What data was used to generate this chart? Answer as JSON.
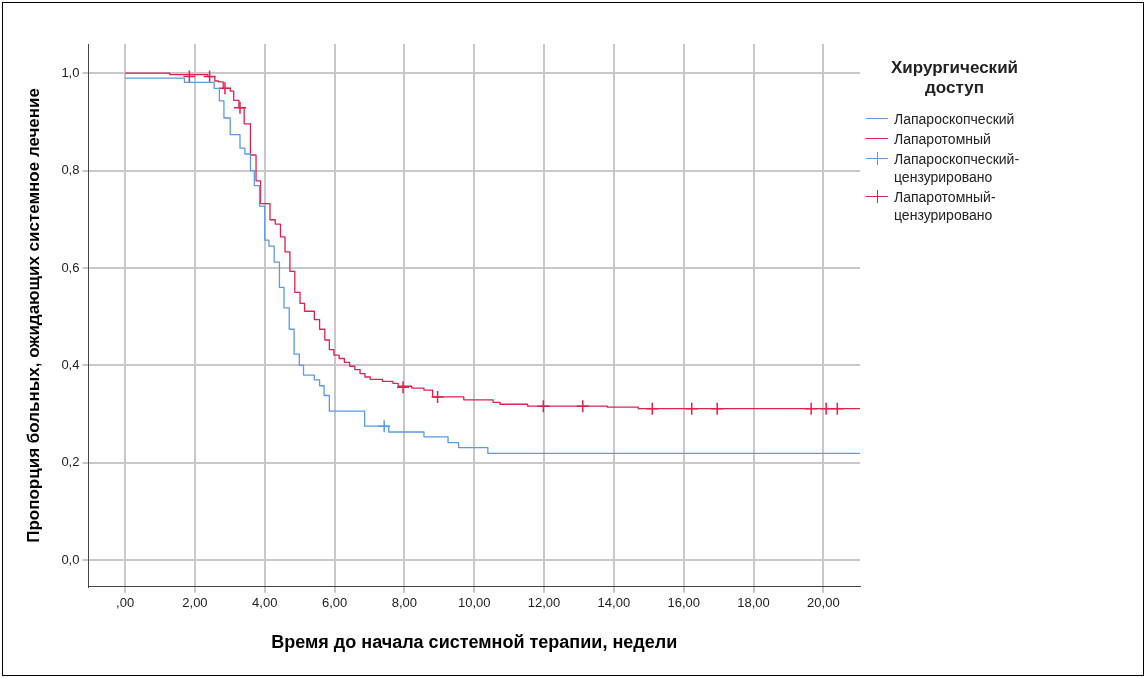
{
  "chart_data": {
    "type": "step",
    "xlabel": "Время до начала системной терапии, недели",
    "ylabel": "Пропорция больных, ожидающих системное лечение",
    "legend_title": "Хирургический доступ",
    "legend": "top right",
    "grid": true,
    "xlim": [
      -1.05,
      21.05
    ],
    "ylim": [
      -0.055,
      1.06
    ],
    "xticks": [
      {
        "value": 0,
        "label": ",00"
      },
      {
        "value": 2,
        "label": "2,00"
      },
      {
        "value": 4,
        "label": "4,00"
      },
      {
        "value": 6,
        "label": "6,00"
      },
      {
        "value": 8,
        "label": "8,00"
      },
      {
        "value": 10,
        "label": "10,00"
      },
      {
        "value": 12,
        "label": "12,00"
      },
      {
        "value": 14,
        "label": "14,00"
      },
      {
        "value": 16,
        "label": "16,00"
      },
      {
        "value": 18,
        "label": "18,00"
      },
      {
        "value": 20,
        "label": "20,00"
      }
    ],
    "yticks": [
      {
        "value": 0,
        "label": "0,0"
      },
      {
        "value": 0.2,
        "label": "0,2"
      },
      {
        "value": 0.4,
        "label": "0,4"
      },
      {
        "value": 0.6,
        "label": "0,6"
      },
      {
        "value": 0.8,
        "label": "0,8"
      },
      {
        "value": 1,
        "label": "1,0"
      }
    ],
    "series": [
      {
        "name": "Лапароскопческий",
        "type": "step",
        "color": "#5b9be6",
        "marker": "none",
        "x": [
          0,
          1.7,
          2.55,
          2.7,
          2.83,
          3.01,
          3.29,
          3.43,
          3.59,
          3.7,
          3.85,
          4.0,
          4.12,
          4.27,
          4.42,
          4.55,
          4.7,
          4.84,
          4.99,
          5.11,
          5.42,
          5.57,
          5.7,
          5.85,
          6.86,
          7.55,
          8.56,
          9.25,
          9.55,
          10.39,
          21.05
        ],
        "values": [
          0.99,
          0.981,
          0.969,
          0.943,
          0.908,
          0.874,
          0.846,
          0.834,
          0.8,
          0.769,
          0.727,
          0.657,
          0.645,
          0.612,
          0.56,
          0.518,
          0.474,
          0.423,
          0.4,
          0.38,
          0.37,
          0.358,
          0.338,
          0.306,
          0.275,
          0.263,
          0.253,
          0.241,
          0.231,
          0.219,
          0.219
        ]
      },
      {
        "name": "Лапаротомный",
        "type": "step",
        "color": "#e0224f",
        "marker": "none",
        "x": [
          0,
          1.28,
          2.37,
          2.57,
          2.67,
          2.81,
          3.01,
          3.11,
          3.26,
          3.41,
          3.59,
          3.75,
          3.88,
          4.15,
          4.3,
          4.45,
          4.58,
          4.72,
          4.86,
          5.01,
          5.14,
          5.42,
          5.57,
          5.72,
          5.85,
          5.98,
          6.13,
          6.28,
          6.43,
          6.58,
          6.73,
          6.87,
          7.02,
          7.37,
          7.67,
          7.82,
          8.21,
          8.56,
          8.81,
          9.7,
          10.54,
          10.74,
          11.53,
          13.81,
          14.7,
          21.05
        ],
        "values": [
          1.0,
          0.997,
          0.993,
          0.984,
          0.982,
          0.969,
          0.963,
          0.944,
          0.929,
          0.896,
          0.832,
          0.779,
          0.732,
          0.699,
          0.69,
          0.664,
          0.633,
          0.593,
          0.55,
          0.527,
          0.511,
          0.494,
          0.474,
          0.452,
          0.432,
          0.421,
          0.414,
          0.406,
          0.398,
          0.391,
          0.383,
          0.376,
          0.371,
          0.367,
          0.363,
          0.357,
          0.353,
          0.349,
          0.335,
          0.329,
          0.324,
          0.32,
          0.316,
          0.314,
          0.311,
          0.311
        ]
      },
      {
        "name": "Лапароскопческий-цензурировано",
        "type": "scatter",
        "color": "#5b9be6",
        "marker": "cross",
        "x": [
          7.42
        ],
        "values": [
          0.275
        ]
      },
      {
        "name": "Лапаротомный-цензурировано",
        "type": "scatter",
        "color": "#e0224f",
        "marker": "cross",
        "x": [
          1.84,
          2.42,
          2.86,
          3.29,
          7.96,
          8.95,
          11.98,
          13.11,
          15.1,
          16.23,
          16.96,
          19.65,
          20.08,
          20.4
        ],
        "values": [
          0.993,
          0.993,
          0.969,
          0.929,
          0.355,
          0.335,
          0.316,
          0.316,
          0.311,
          0.311,
          0.311,
          0.311,
          0.311,
          0.311
        ]
      }
    ]
  }
}
